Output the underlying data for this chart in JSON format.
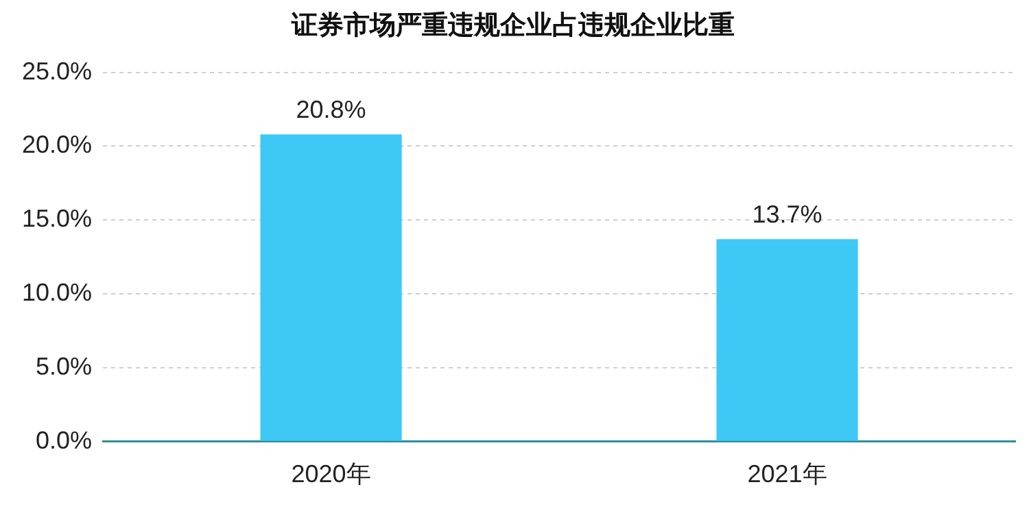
{
  "chart_data": {
    "type": "bar",
    "title": "证券市场严重违规企业占违规企业比重",
    "categories": [
      "2020年",
      "2021年"
    ],
    "values": [
      20.8,
      13.7
    ],
    "color": "#3ec8f5",
    "value_labels": [
      "20.8%",
      "13.7%"
    ],
    "ylim": [
      0,
      25
    ],
    "yticks": [
      {
        "value": 0,
        "label": "0.0%"
      },
      {
        "value": 5,
        "label": "5.0%"
      },
      {
        "value": 10,
        "label": "10.0%"
      },
      {
        "value": 15,
        "label": "15.0%"
      },
      {
        "value": 20,
        "label": "20.0%"
      },
      {
        "value": 25,
        "label": "25.0%"
      }
    ],
    "grid": "y",
    "legend": false
  }
}
